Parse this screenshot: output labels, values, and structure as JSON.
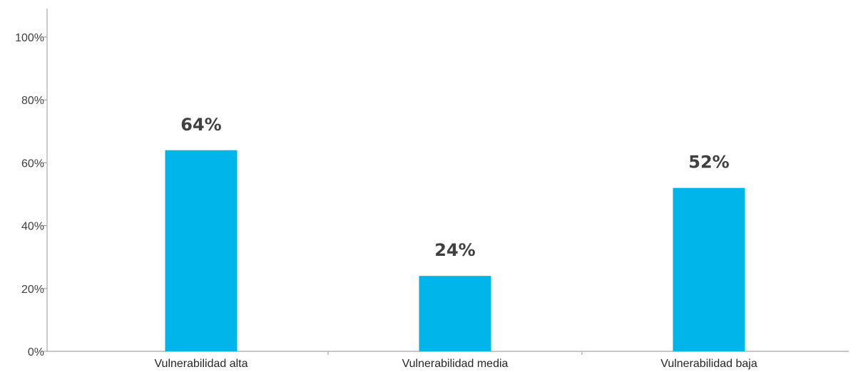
{
  "chart_data": {
    "type": "bar",
    "categories": [
      "Vulnerabilidad alta",
      "Vulnerabilidad media",
      "Vulnerabilidad baja"
    ],
    "values": [
      64,
      24,
      52
    ],
    "data_labels": [
      "64%",
      "24%",
      "52%"
    ],
    "ylim": [
      0,
      100
    ],
    "yticks": [
      0,
      20,
      40,
      60,
      80,
      100
    ],
    "ytick_labels": [
      "0%",
      "20%",
      "40%",
      "60%",
      "80%",
      "100%"
    ],
    "bar_color": "#00b5ea",
    "axis_color": "#a6a6a6",
    "grid": false,
    "legend": "none"
  }
}
